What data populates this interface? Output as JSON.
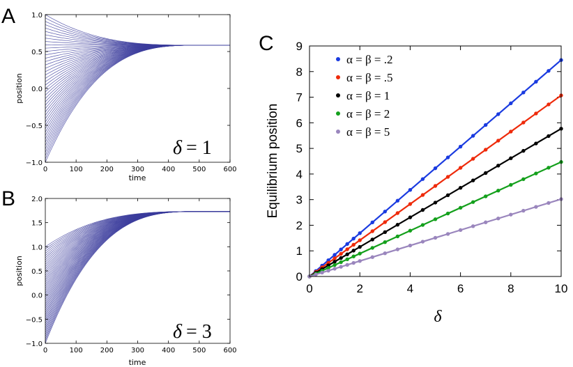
{
  "panels": {
    "A": "A",
    "B": "B",
    "C": "C"
  },
  "chart_data": [
    {
      "id": "A",
      "type": "line",
      "title": "",
      "xlabel": "time",
      "ylabel": "position",
      "xlim": [
        0,
        600
      ],
      "ylim": [
        -1.0,
        1.0
      ],
      "xticks": [
        0,
        100,
        200,
        300,
        400,
        500,
        600
      ],
      "yticks": [
        -1.0,
        -0.5,
        0.0,
        0.5,
        1.0
      ],
      "xtick_labels": [
        "0",
        "100",
        "200",
        "300",
        "400",
        "500",
        "600"
      ],
      "ytick_labels": [
        "−1.0",
        "−0.5",
        "0.0",
        "0.5",
        "1.0"
      ],
      "trajectories": {
        "initial_min": -1.0,
        "initial_max": 1.0,
        "equilibrium": 0.585,
        "color": "#3b3c9c",
        "settle_time": 500
      },
      "annotation": {
        "symbol": "δ",
        "equals": "= 1"
      }
    },
    {
      "id": "B",
      "type": "line",
      "title": "",
      "xlabel": "time",
      "ylabel": "position",
      "xlim": [
        0,
        600
      ],
      "ylim": [
        -1.0,
        2.0
      ],
      "xticks": [
        0,
        100,
        200,
        300,
        400,
        500,
        600
      ],
      "yticks": [
        -1.0,
        -0.5,
        0.0,
        0.5,
        1.0,
        1.5,
        2.0
      ],
      "xtick_labels": [
        "0",
        "100",
        "200",
        "300",
        "400",
        "500",
        "600"
      ],
      "ytick_labels": [
        "−1.0",
        "−0.5",
        "0.0",
        "0.5",
        "1.0",
        "1.5",
        "2.0"
      ],
      "trajectories": {
        "initial_min": -1.0,
        "initial_max": 1.0,
        "equilibrium": 1.73,
        "color": "#3b3c9c",
        "settle_time": 500
      },
      "annotation": {
        "symbol": "δ",
        "equals": "= 3"
      }
    },
    {
      "id": "C",
      "type": "line",
      "title": "",
      "xlabel": "δ",
      "ylabel": "Equilibrium position",
      "xlim": [
        0,
        10
      ],
      "ylim": [
        0,
        9
      ],
      "xticks": [
        0,
        2,
        4,
        6,
        8,
        10
      ],
      "yticks": [
        0,
        1,
        2,
        3,
        4,
        5,
        6,
        7,
        8,
        9
      ],
      "xtick_labels": [
        "0",
        "2",
        "4",
        "6",
        "8",
        "10"
      ],
      "ytick_labels": [
        "0",
        "1",
        "2",
        "3",
        "4",
        "5",
        "6",
        "7",
        "8",
        "9"
      ],
      "marker_x": [
        0,
        0.25,
        0.5,
        0.75,
        1.0,
        1.25,
        1.5,
        1.75,
        2.0,
        2.5,
        3.0,
        3.5,
        4.0,
        4.5,
        5.0,
        5.5,
        6.0,
        6.5,
        7.0,
        7.5,
        8.0,
        8.5,
        9.0,
        9.5,
        10.0
      ],
      "legend_position": "upper-left",
      "series": [
        {
          "name": "α = β = .2",
          "color": "#1a3be0",
          "slope": 0.845
        },
        {
          "name": "α = β = .5",
          "color": "#ee2a0a",
          "slope": 0.707
        },
        {
          "name": "α = β = 1",
          "color": "#000000",
          "slope": 0.577
        },
        {
          "name": "α = β = 2",
          "color": "#14a01c",
          "slope": 0.447
        },
        {
          "name": "α = β = 5",
          "color": "#9a86bd",
          "slope": 0.302
        }
      ]
    }
  ]
}
